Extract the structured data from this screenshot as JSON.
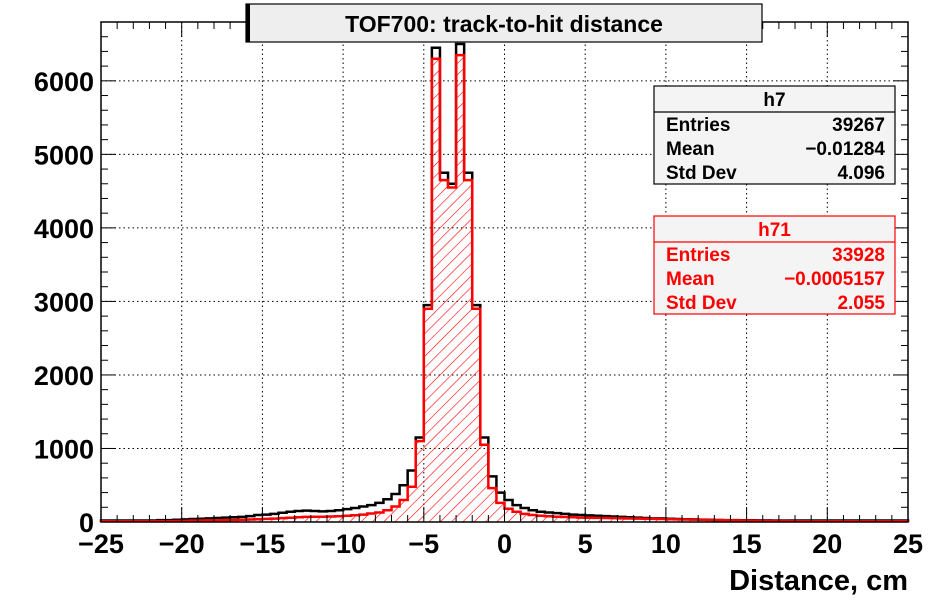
{
  "chart_data": {
    "type": "bar",
    "title": "TOF700: track-to-hit distance",
    "xlabel": "Distance, cm",
    "ylabel": "",
    "xlim": [
      -25,
      25
    ],
    "ylim": [
      0,
      6800
    ],
    "bin_width": 1,
    "grid": true,
    "x_ticks": [
      -25,
      -20,
      -15,
      -10,
      -5,
      0,
      5,
      10,
      15,
      20,
      25
    ],
    "y_ticks": [
      0,
      1000,
      2000,
      3000,
      4000,
      5000,
      6000
    ],
    "series": [
      {
        "name": "h7",
        "color": "#000000",
        "fill": "none",
        "values": [
          20,
          20,
          20,
          20,
          20,
          20,
          20,
          25,
          25,
          30,
          35,
          40,
          45,
          50,
          55,
          60,
          65,
          70,
          80,
          95,
          100,
          110,
          125,
          140,
          150,
          155,
          150,
          145,
          150,
          160,
          175,
          190,
          210,
          230,
          260,
          310,
          380,
          500,
          700,
          1150,
          2950,
          6450,
          4750,
          4600,
          6500,
          4750,
          2950,
          1150,
          620,
          400,
          300,
          230,
          190,
          160,
          140,
          130,
          120,
          110,
          100,
          95,
          90,
          85,
          80,
          75,
          70,
          65,
          60,
          55,
          50,
          50,
          45,
          40,
          38,
          35,
          32,
          30,
          28,
          26,
          25,
          24,
          23,
          22,
          22,
          21,
          21,
          20,
          20,
          20,
          20,
          20,
          20,
          20,
          20,
          20,
          20,
          20,
          20,
          20,
          20,
          20
        ]
      },
      {
        "name": "h71",
        "color": "#ff0000",
        "fill": "hatched",
        "values": [
          10,
          10,
          10,
          10,
          10,
          10,
          10,
          12,
          12,
          14,
          16,
          18,
          20,
          22,
          24,
          26,
          28,
          30,
          34,
          38,
          42,
          46,
          52,
          58,
          64,
          70,
          72,
          72,
          74,
          78,
          85,
          92,
          100,
          115,
          130,
          160,
          210,
          300,
          480,
          1100,
          2900,
          6300,
          4650,
          4550,
          6350,
          4650,
          2900,
          1050,
          460,
          260,
          180,
          140,
          110,
          95,
          85,
          78,
          72,
          68,
          64,
          60,
          58,
          56,
          54,
          52,
          50,
          48,
          46,
          44,
          42,
          40,
          38,
          36,
          34,
          32,
          30,
          28,
          26,
          24,
          22,
          20,
          18,
          16,
          15,
          14,
          13,
          12,
          11,
          10,
          10,
          10,
          10,
          10,
          10,
          10,
          10,
          10,
          10,
          10,
          10,
          10
        ]
      }
    ],
    "stats_boxes": [
      {
        "name": "h7",
        "color": "#000000",
        "rows": [
          {
            "label": "Entries",
            "value": "39267"
          },
          {
            "label": "Mean",
            "value": "−0.01284"
          },
          {
            "label": "Std Dev",
            "value": "4.096"
          }
        ]
      },
      {
        "name": "h71",
        "color": "#ff0000",
        "rows": [
          {
            "label": "Entries",
            "value": "33928"
          },
          {
            "label": "Mean",
            "value": "−0.0005157"
          },
          {
            "label": "Std Dev",
            "value": "2.055"
          }
        ]
      }
    ]
  }
}
